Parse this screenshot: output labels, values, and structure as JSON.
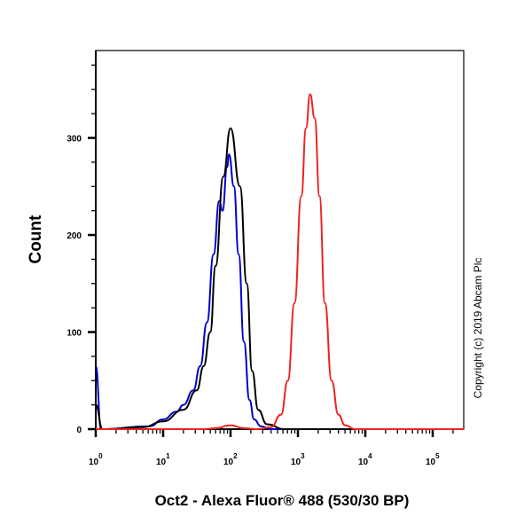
{
  "chart_data": {
    "type": "line",
    "title": "",
    "xlabel": "Oct2 - Alexa Fluor® 488 (530/30 BP)",
    "ylabel": "Count",
    "xscale": "log",
    "xlim": [
      1,
      300000
    ],
    "ylim": [
      0,
      390
    ],
    "x_ticks": [
      {
        "value": 1,
        "base": "10",
        "exp": "0"
      },
      {
        "value": 10,
        "base": "10",
        "exp": "1"
      },
      {
        "value": 100,
        "base": "10",
        "exp": "2"
      },
      {
        "value": 1000,
        "base": "10",
        "exp": "3"
      },
      {
        "value": 10000,
        "base": "10",
        "exp": "4"
      },
      {
        "value": 100000,
        "base": "10",
        "exp": "5"
      }
    ],
    "y_ticks": [
      0,
      100,
      200,
      300
    ],
    "grid": false,
    "legend": "none",
    "annotation": "Copyright (c) 2019 Abcam Plc",
    "series": [
      {
        "color": "#0000cc",
        "x": [
          1,
          1.2,
          6.3,
          10,
          15.8,
          20,
          28,
          35.5,
          44.7,
          56,
          68,
          76,
          89,
          95,
          112,
          132,
          158,
          191,
          224,
          282,
          398,
          300000
        ],
        "y": [
          65,
          0,
          3,
          10,
          18,
          25,
          40,
          65,
          110,
          180,
          235,
          225,
          270,
          283,
          250,
          180,
          90,
          30,
          10,
          3,
          0,
          0
        ]
      },
      {
        "color": "#000000",
        "x": [
          1,
          1.26,
          5,
          10,
          20,
          31.6,
          40,
          50,
          60,
          78,
          100,
          138,
          174,
          209,
          257,
          347,
          631,
          300000
        ],
        "y": [
          25,
          0,
          2,
          8,
          20,
          40,
          65,
          100,
          168,
          260,
          310,
          250,
          150,
          60,
          20,
          5,
          0,
          0
        ]
      },
      {
        "color": "#ee2222",
        "x": [
          1,
          40,
          60,
          100,
          158,
          250,
          398,
          562,
          708,
          891,
          1122,
          1318,
          1514,
          1778,
          2089,
          2512,
          3162,
          3981,
          5012,
          7079,
          300000
        ],
        "y": [
          0,
          0,
          1,
          4,
          1,
          0,
          2,
          15,
          50,
          130,
          240,
          310,
          345,
          320,
          240,
          130,
          50,
          15,
          4,
          0,
          0
        ]
      }
    ]
  }
}
